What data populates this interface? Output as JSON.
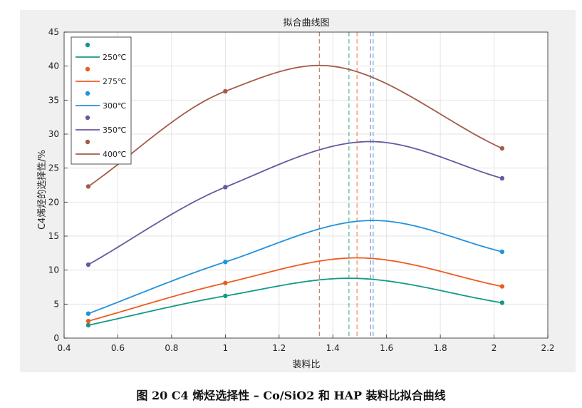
{
  "caption": "图 20    C4 烯烃选择性 – Co/SiO2 和 HAP 装料比拟合曲线",
  "chart_data": {
    "type": "line",
    "title": "拟合曲线图",
    "xlabel": "装料比",
    "ylabel": "C4烯烃的选择性/%",
    "xlim": [
      0.4,
      2.2
    ],
    "ylim": [
      0,
      45
    ],
    "xticks": [
      "0.4",
      "0.6",
      "0.8",
      "1",
      "1.2",
      "1.4",
      "1.6",
      "1.8",
      "2",
      "2.2"
    ],
    "yticks": [
      "0",
      "5",
      "10",
      "15",
      "20",
      "25",
      "30",
      "35",
      "40",
      "45"
    ],
    "grid": true,
    "legend_position": "top-left",
    "x": [
      0.49,
      1.0,
      2.03
    ],
    "series": [
      {
        "name": "250℃",
        "color": "#139a85",
        "points": [
          1.9,
          6.2,
          5.2
        ],
        "peak_x": 1.46,
        "peak_y": 8.8
      },
      {
        "name": "275℃",
        "color": "#ee5b22",
        "points": [
          2.5,
          8.1,
          7.6
        ],
        "peak_x": 1.49,
        "peak_y": 11.8
      },
      {
        "name": "300℃",
        "color": "#2491dc",
        "points": [
          3.6,
          11.2,
          12.7
        ],
        "peak_x": 1.55,
        "peak_y": 17.3
      },
      {
        "name": "350℃",
        "color": "#6a579e",
        "points": [
          10.8,
          22.2,
          23.5
        ],
        "peak_x": 1.54,
        "peak_y": 28.9
      },
      {
        "name": "400℃",
        "color": "#a55a48",
        "points": [
          22.3,
          36.3,
          27.9
        ],
        "peak_x": 1.35,
        "peak_y": 40.1
      }
    ],
    "vertical_markers": [
      {
        "x": 1.35,
        "color": "#a55a48"
      },
      {
        "x": 1.46,
        "color": "#139a85"
      },
      {
        "x": 1.49,
        "color": "#ee5b22"
      },
      {
        "x": 1.54,
        "color": "#6a579e"
      },
      {
        "x": 1.55,
        "color": "#2491dc"
      }
    ]
  }
}
